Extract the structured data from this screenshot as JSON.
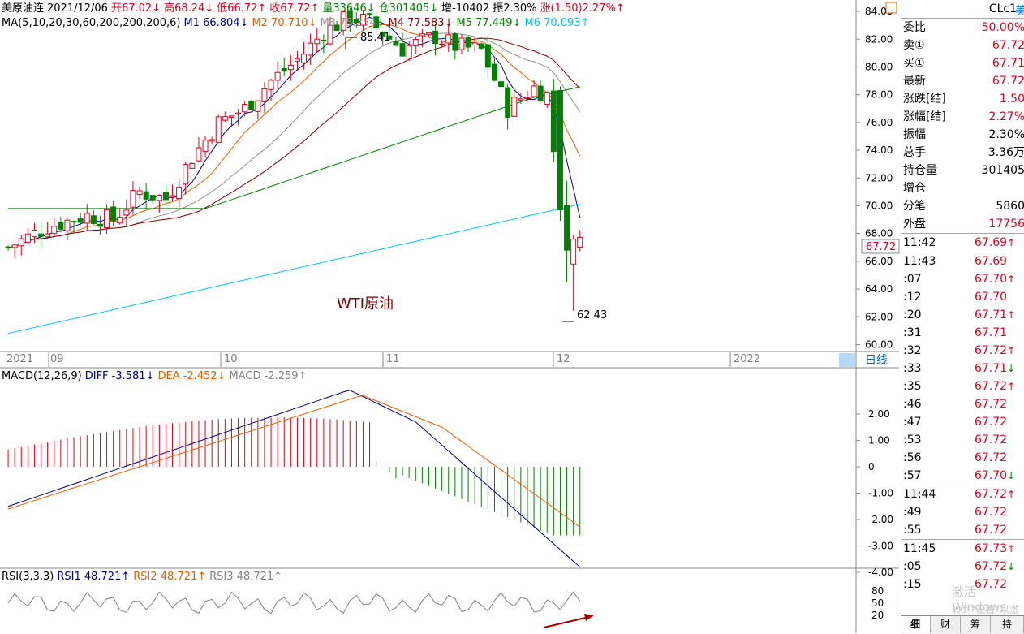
{
  "header": {
    "name": "美原油连",
    "date": "2021/12/06",
    "open": "开67.02↓",
    "high": "高68.24↓",
    "low": "低66.72↑",
    "close": "收67.72↑",
    "volume": "量33646↓",
    "oi": "仓301405↓",
    "oi_chg": "增-10402",
    "amplitude": "振2.30%",
    "change": "涨(1.50)2.27%↑"
  },
  "ma_line": {
    "label": "MA(5,10,20,30,60,200,200,200,6)",
    "m1": "M1 66.804↓",
    "m2": "M2 70.710↓",
    "m3": "M3 75.254↓",
    "m4": "M4 77.583↓",
    "m5": "M5 77.449↓",
    "m6": "M6 70.093↑"
  },
  "price_chart": {
    "overlay_label": "WTI原油",
    "high_label": "85.41",
    "low_label": "62.43",
    "last_price_tag": "67.72",
    "y_ticks": [
      "84.00",
      "82.00",
      "80.00",
      "78.00",
      "76.00",
      "74.00",
      "72.00",
      "70.00",
      "68.00",
      "66.00",
      "64.00",
      "62.00",
      "60.00"
    ],
    "x_labels": [
      "2021",
      "09",
      "10",
      "11",
      "12",
      "2022"
    ],
    "period_button": "日线"
  },
  "macd": {
    "label": "MACD(12,26,9)",
    "diff": "DIFF -3.581↓",
    "dea": "DEA -2.452↓",
    "macd": "MACD -2.259↑",
    "y_ticks": [
      "2.00",
      "1.00",
      "0",
      "-1.00",
      "-2.00",
      "-3.00",
      "-4.00"
    ]
  },
  "rsi": {
    "label": "RSI(3,3,3)",
    "rsi1": "RSI1 48.721↑",
    "rsi2": "RSI2 48.721↑",
    "rsi3": "RSI3 48.721↑",
    "y_ticks": [
      "80",
      "50",
      "20"
    ]
  },
  "sidebar": {
    "symbol": "CLc1",
    "symbol_suffix": "美",
    "quote": [
      {
        "label": "委比",
        "value": "50.00%",
        "color": "red"
      },
      {
        "label": "卖①",
        "value": "67.72",
        "color": "red"
      },
      {
        "label": "买①",
        "value": "67.71",
        "color": "red"
      },
      {
        "label": "最新",
        "value": "67.72",
        "color": "red"
      },
      {
        "label": "涨跌[结]",
        "value": "1.50",
        "color": "red"
      },
      {
        "label": "涨幅[结]",
        "value": "2.27%",
        "color": "red"
      },
      {
        "label": "振幅",
        "value": "2.30%",
        "color": "black"
      },
      {
        "label": "总手",
        "value": "3.36万",
        "color": "black"
      },
      {
        "label": "持仓量",
        "value": "301405",
        "color": "black"
      },
      {
        "label": "增仓",
        "value": "",
        "color": "black"
      },
      {
        "label": "分笔",
        "value": "5860",
        "color": "black"
      },
      {
        "label": "外盘",
        "value": "17756",
        "color": "red"
      }
    ],
    "ticks": [
      {
        "time": "11:42",
        "price": "67.69",
        "arrow": "↑",
        "sep": true
      },
      {
        "time": "11:43",
        "price": "67.69",
        "arrow": "",
        "sep": true
      },
      {
        "time": ":07",
        "price": "67.70",
        "arrow": "↑",
        "sep": false
      },
      {
        "time": ":12",
        "price": "67.70",
        "arrow": "",
        "sep": false
      },
      {
        "time": ":20",
        "price": "67.71",
        "arrow": "↑",
        "sep": false
      },
      {
        "time": ":31",
        "price": "67.71",
        "arrow": "",
        "sep": false
      },
      {
        "time": ":32",
        "price": "67.72",
        "arrow": "↑",
        "sep": false
      },
      {
        "time": ":33",
        "price": "67.71",
        "arrow": "↓",
        "sep": false
      },
      {
        "time": ":35",
        "price": "67.72",
        "arrow": "↑",
        "sep": false
      },
      {
        "time": ":46",
        "price": "67.72",
        "arrow": "",
        "sep": false
      },
      {
        "time": ":47",
        "price": "67.72",
        "arrow": "",
        "sep": false
      },
      {
        "time": ":53",
        "price": "67.72",
        "arrow": "",
        "sep": false
      },
      {
        "time": ":56",
        "price": "67.72",
        "arrow": "",
        "sep": false
      },
      {
        "time": ":57",
        "price": "67.70",
        "arrow": "↓",
        "sep": false
      },
      {
        "time": "11:44",
        "price": "67.72",
        "arrow": "↑",
        "sep": true
      },
      {
        "time": ":49",
        "price": "67.72",
        "arrow": "",
        "sep": false
      },
      {
        "time": ":55",
        "price": "67.72",
        "arrow": "",
        "sep": false
      },
      {
        "time": "11:45",
        "price": "67.73",
        "arrow": "↑",
        "sep": true
      },
      {
        "time": ":05",
        "price": "67.72",
        "arrow": "↓",
        "sep": false
      },
      {
        "time": ":15",
        "price": "67.72",
        "arrow": "",
        "sep": false
      }
    ],
    "tabs": [
      "细",
      "财",
      "筹",
      "持"
    ],
    "watermark_1": "激活 Windows",
    "watermark_2": "转到\"设置\"以激活"
  },
  "colors": {
    "up": "#e0001b",
    "down": "#008000",
    "m1": "#000080",
    "m2": "#e06000",
    "m3": "#909090",
    "m4": "#800000",
    "m5": "#008000",
    "m6": "#00c8f0",
    "arrow": "#a00000"
  }
}
